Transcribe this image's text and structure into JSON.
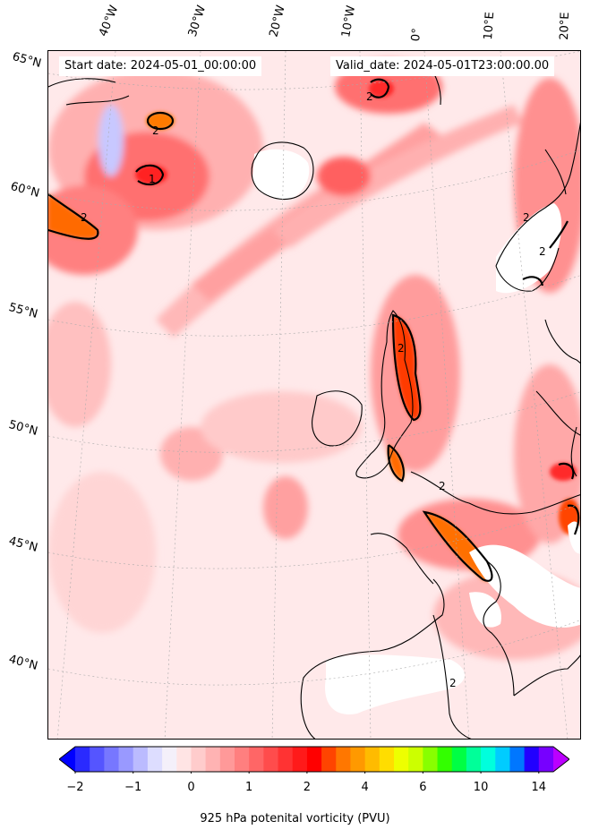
{
  "header": {
    "start_date": "Start date: 2024-05-01_00:00:00",
    "valid_date": "Valid_date: 2024-05-01T23:00:00.00"
  },
  "map": {
    "lon_labels": [
      "40°W",
      "30°W",
      "20°W",
      "10°W",
      "0°",
      "10°E",
      "20°E"
    ],
    "lat_labels": [
      "65°N",
      "60°N",
      "55°N",
      "50°N",
      "45°N",
      "40°N"
    ],
    "contour_labels": [
      "2",
      "2",
      "1",
      "2",
      "2",
      "2",
      "2",
      "2",
      "2"
    ],
    "land_color": "#ffffff",
    "coast_color": "#000000"
  },
  "colorbar": {
    "label": "925 hPa potenital vorticity (PVU)",
    "ticks": [
      "−2",
      "−1",
      "0",
      "1",
      "2",
      "4",
      "6",
      "10",
      "14"
    ],
    "levels": [
      -2,
      -1.75,
      -1.5,
      -1.25,
      -1,
      -0.75,
      -0.5,
      -0.25,
      0,
      0.25,
      0.5,
      0.75,
      1,
      1.25,
      1.5,
      1.75,
      2,
      2.5,
      3,
      3.5,
      4,
      4.5,
      5,
      5.5,
      6,
      7,
      8,
      9,
      10,
      11,
      12,
      13,
      14,
      15
    ],
    "colors": [
      "#0000ff",
      "#2a2aff",
      "#5555ff",
      "#7777ff",
      "#9999ff",
      "#bbbbff",
      "#ddddff",
      "#f4f0fa",
      "#ffe4e4",
      "#ffcccc",
      "#ffb3b3",
      "#ff9999",
      "#ff7f7f",
      "#ff6666",
      "#ff4c4c",
      "#ff3333",
      "#ff1a1a",
      "#ff0000",
      "#ff4400",
      "#ff7700",
      "#ff9900",
      "#ffbb00",
      "#ffdd00",
      "#eeff00",
      "#ccff00",
      "#88ff00",
      "#33ff00",
      "#00ff44",
      "#00ff99",
      "#00ffdd",
      "#00ccff",
      "#0077ff",
      "#2200ff",
      "#7700ff",
      "#bb00ff"
    ]
  }
}
